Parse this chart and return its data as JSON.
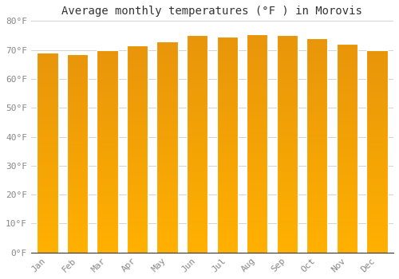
{
  "months": [
    "Jan",
    "Feb",
    "Mar",
    "Apr",
    "May",
    "Jun",
    "Jul",
    "Aug",
    "Sep",
    "Oct",
    "Nov",
    "Dec"
  ],
  "values": [
    69,
    68.5,
    70,
    71.5,
    73,
    75,
    74.5,
    75.5,
    75,
    74,
    72,
    70
  ],
  "title": "Average monthly temperatures (°F ) in Morovis",
  "ylim": [
    0,
    80
  ],
  "yticks": [
    0,
    10,
    20,
    30,
    40,
    50,
    60,
    70,
    80
  ],
  "ytick_labels": [
    "0°F",
    "10°F",
    "20°F",
    "30°F",
    "40°F",
    "50°F",
    "60°F",
    "70°F",
    "80°F"
  ],
  "bar_color_bottom": "#FFB000",
  "bar_color_top": "#E8950A",
  "background_color": "#FFFFFF",
  "grid_color": "#CCCCCC",
  "title_fontsize": 10,
  "tick_fontsize": 8,
  "bar_width": 0.7,
  "bar_edge_color": "#DDDDDD",
  "tick_color": "#888888"
}
